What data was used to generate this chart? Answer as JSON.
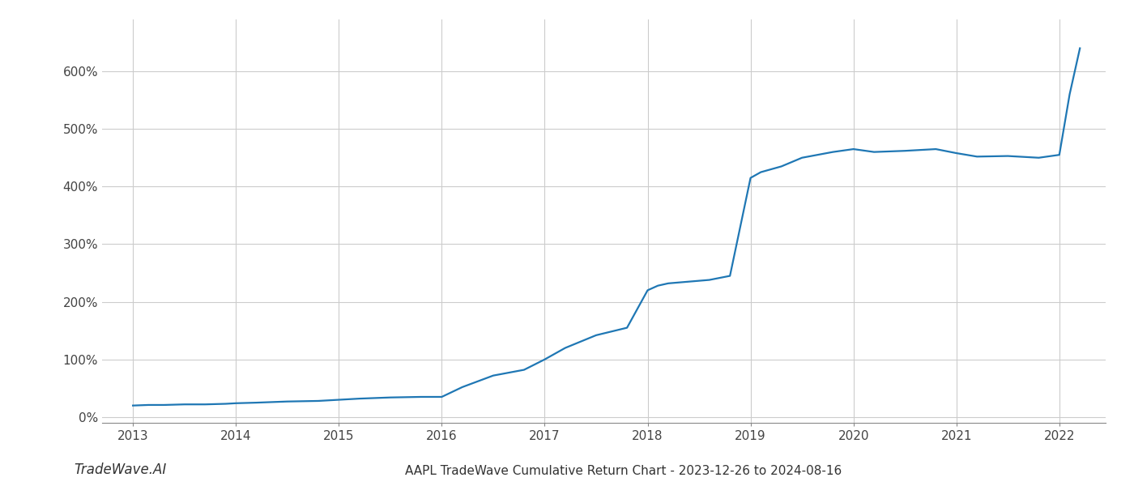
{
  "title": "AAPL TradeWave Cumulative Return Chart - 2023-12-26 to 2024-08-16",
  "watermark": "TradeWave.AI",
  "line_color": "#1f77b4",
  "background_color": "#ffffff",
  "grid_color": "#cccccc",
  "x_years": [
    2013,
    2014,
    2015,
    2016,
    2017,
    2018,
    2019,
    2020,
    2021,
    2022
  ],
  "x_data": [
    2013.0,
    2013.15,
    2013.3,
    2013.5,
    2013.7,
    2013.9,
    2014.0,
    2014.2,
    2014.5,
    2014.8,
    2015.0,
    2015.2,
    2015.5,
    2015.8,
    2016.0,
    2016.2,
    2016.5,
    2016.8,
    2017.0,
    2017.2,
    2017.5,
    2017.8,
    2018.0,
    2018.1,
    2018.2,
    2018.4,
    2018.6,
    2018.8,
    2019.0,
    2019.1,
    2019.3,
    2019.5,
    2019.8,
    2020.0,
    2020.2,
    2020.5,
    2020.8,
    2021.0,
    2021.2,
    2021.5,
    2021.8,
    2022.0,
    2022.1,
    2022.2
  ],
  "y_data": [
    20,
    21,
    21,
    22,
    22,
    23,
    24,
    25,
    27,
    28,
    30,
    32,
    34,
    35,
    35,
    52,
    72,
    82,
    100,
    120,
    142,
    155,
    220,
    228,
    232,
    235,
    238,
    245,
    415,
    425,
    435,
    450,
    460,
    465,
    460,
    462,
    465,
    458,
    452,
    453,
    450,
    455,
    560,
    640
  ],
  "ylim": [
    -10,
    690
  ],
  "yticks": [
    0,
    100,
    200,
    300,
    400,
    500,
    600
  ],
  "xlim": [
    2012.7,
    2022.45
  ],
  "title_fontsize": 11,
  "watermark_fontsize": 12,
  "tick_fontsize": 11,
  "line_width": 1.6
}
